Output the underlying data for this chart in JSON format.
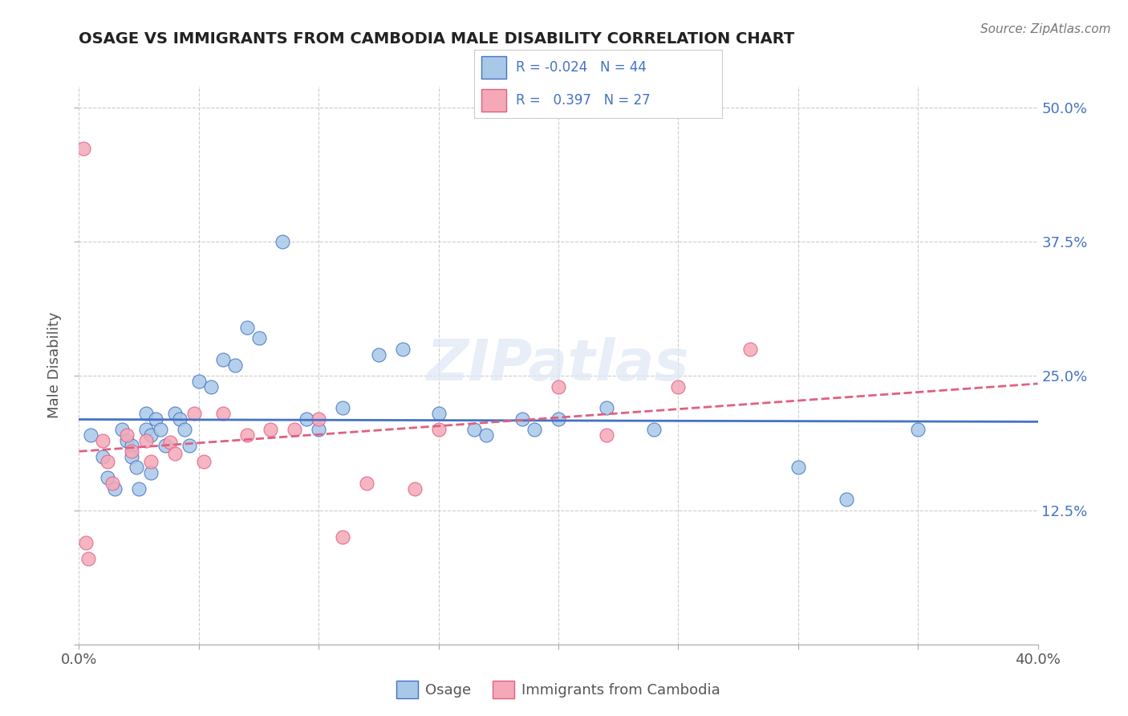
{
  "title": "OSAGE VS IMMIGRANTS FROM CAMBODIA MALE DISABILITY CORRELATION CHART",
  "source_text": "Source: ZipAtlas.com",
  "ylabel": "Male Disability",
  "xlim": [
    0.0,
    0.4
  ],
  "ylim": [
    0.0,
    0.52
  ],
  "x_ticks": [
    0.0,
    0.05,
    0.1,
    0.15,
    0.2,
    0.25,
    0.3,
    0.35,
    0.4
  ],
  "y_ticks": [
    0.0,
    0.125,
    0.25,
    0.375,
    0.5
  ],
  "color_osage": "#a8c8e8",
  "color_cambodia": "#f4a8b8",
  "line_color_osage": "#4472c4",
  "line_color_cambodia": "#e06080",
  "background_color": "#ffffff",
  "grid_color": "#cccccc",
  "osage_x": [
    0.005,
    0.01,
    0.012,
    0.015,
    0.018,
    0.02,
    0.022,
    0.022,
    0.024,
    0.025,
    0.028,
    0.028,
    0.03,
    0.03,
    0.032,
    0.034,
    0.036,
    0.04,
    0.042,
    0.044,
    0.046,
    0.05,
    0.055,
    0.06,
    0.065,
    0.07,
    0.075,
    0.085,
    0.095,
    0.1,
    0.11,
    0.125,
    0.135,
    0.15,
    0.165,
    0.17,
    0.185,
    0.19,
    0.2,
    0.22,
    0.24,
    0.3,
    0.32,
    0.35
  ],
  "osage_y": [
    0.195,
    0.175,
    0.155,
    0.145,
    0.2,
    0.19,
    0.185,
    0.175,
    0.165,
    0.145,
    0.215,
    0.2,
    0.195,
    0.16,
    0.21,
    0.2,
    0.185,
    0.215,
    0.21,
    0.2,
    0.185,
    0.245,
    0.24,
    0.265,
    0.26,
    0.295,
    0.285,
    0.375,
    0.21,
    0.2,
    0.22,
    0.27,
    0.275,
    0.215,
    0.2,
    0.195,
    0.21,
    0.2,
    0.21,
    0.22,
    0.2,
    0.165,
    0.135,
    0.2
  ],
  "cambodia_x": [
    0.002,
    0.003,
    0.004,
    0.01,
    0.012,
    0.014,
    0.02,
    0.022,
    0.028,
    0.03,
    0.038,
    0.04,
    0.048,
    0.052,
    0.06,
    0.07,
    0.08,
    0.09,
    0.1,
    0.11,
    0.12,
    0.14,
    0.15,
    0.2,
    0.22,
    0.25,
    0.28
  ],
  "cambodia_y": [
    0.462,
    0.095,
    0.08,
    0.19,
    0.17,
    0.15,
    0.195,
    0.18,
    0.19,
    0.17,
    0.188,
    0.178,
    0.215,
    0.17,
    0.215,
    0.195,
    0.2,
    0.2,
    0.21,
    0.1,
    0.15,
    0.145,
    0.2,
    0.24,
    0.195,
    0.24,
    0.275
  ]
}
